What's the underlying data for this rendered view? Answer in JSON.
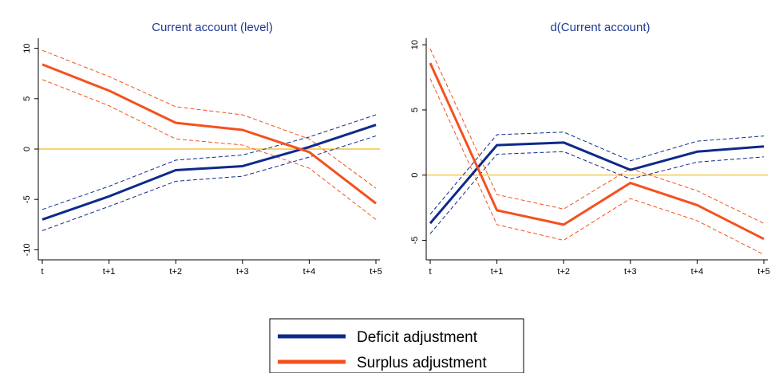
{
  "chart_data": [
    {
      "type": "line",
      "title": "Current account (level)",
      "x": [
        "t",
        "t+1",
        "t+2",
        "t+3",
        "t+4",
        "t+5"
      ],
      "ylim": [
        -11,
        11
      ],
      "yticks": [
        10,
        5,
        0,
        -5,
        -10
      ],
      "ytick_labels": [
        "10",
        "5",
        "0",
        "-5",
        "-10"
      ],
      "reference_line": 0,
      "series": [
        {
          "name": "Deficit adjustment",
          "color": "#0d2a8a",
          "values": [
            -7.0,
            -4.7,
            -2.1,
            -1.7,
            0.2,
            2.4
          ],
          "upper": [
            -6.0,
            -3.7,
            -1.1,
            -0.6,
            1.2,
            3.4
          ],
          "lower": [
            -8.1,
            -5.7,
            -3.2,
            -2.7,
            -0.8,
            1.3
          ]
        },
        {
          "name": "Surplus adjustment",
          "color": "#f4511e",
          "values": [
            8.4,
            5.8,
            2.6,
            1.9,
            -0.3,
            -5.4
          ],
          "upper": [
            9.8,
            7.2,
            4.2,
            3.4,
            1.0,
            -3.9
          ],
          "lower": [
            6.9,
            4.3,
            1.0,
            0.4,
            -1.9,
            -7.0
          ]
        }
      ]
    },
    {
      "type": "line",
      "title": "d(Current account)",
      "x": [
        "t",
        "t+1",
        "t+2",
        "t+3",
        "t+4",
        "t+5"
      ],
      "ylim": [
        -6.5,
        10.5
      ],
      "yticks": [
        10,
        5,
        0,
        -5
      ],
      "ytick_labels": [
        "10",
        "5",
        "0",
        "-5"
      ],
      "reference_line": 0,
      "series": [
        {
          "name": "Deficit adjustment",
          "color": "#0d2a8a",
          "values": [
            -3.7,
            2.3,
            2.5,
            0.4,
            1.8,
            2.2
          ],
          "upper": [
            -3.0,
            3.1,
            3.3,
            1.1,
            2.6,
            3.0
          ],
          "lower": [
            -4.5,
            1.6,
            1.8,
            -0.3,
            1.0,
            1.4
          ]
        },
        {
          "name": "Surplus adjustment",
          "color": "#f4511e",
          "values": [
            8.6,
            -2.7,
            -3.8,
            -0.6,
            -2.3,
            -4.9
          ],
          "upper": [
            9.7,
            -1.5,
            -2.6,
            0.5,
            -1.2,
            -3.7
          ],
          "lower": [
            7.4,
            -3.8,
            -5.0,
            -1.8,
            -3.5,
            -6.1
          ]
        }
      ]
    }
  ],
  "legend": {
    "items": [
      {
        "label": "Deficit adjustment",
        "color": "#0d2a8a"
      },
      {
        "label": "Surplus adjustment",
        "color": "#f4511e"
      }
    ]
  },
  "colors": {
    "reference_line": "#f2b817",
    "axis": "#000000",
    "title": "#1f3a93"
  }
}
